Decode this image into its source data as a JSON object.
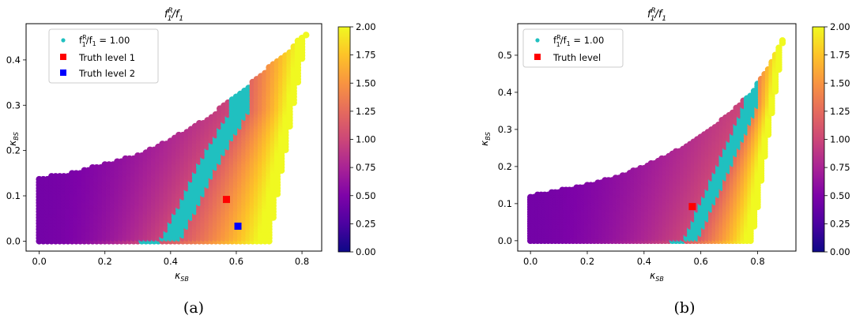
{
  "chart_data": [
    {
      "type": "scatter",
      "title": "f1R/f1",
      "xlabel": "κSB",
      "ylabel": "κBS",
      "xlim": [
        -0.04,
        0.86
      ],
      "ylim": [
        -0.022,
        0.48
      ],
      "xticks": [
        "0.0",
        "0.2",
        "0.4",
        "0.6",
        "0.8"
      ],
      "yticks": [
        "0.0",
        "0.1",
        "0.2",
        "0.3",
        "0.4"
      ],
      "ytick_values": [
        0.0,
        0.1,
        0.2,
        0.3,
        0.4
      ],
      "xtick_values": [
        0.0,
        0.2,
        0.4,
        0.6,
        0.8
      ],
      "colorbar": {
        "min": 0.0,
        "max": 2.0,
        "colormap": "plasma",
        "ticks": [
          "0.00",
          "0.25",
          "0.50",
          "0.75",
          "1.00",
          "1.25",
          "1.50",
          "1.75",
          "2.00"
        ]
      },
      "region": {
        "description": "filled colored scatter region",
        "left_edge_x": 0.0,
        "bottom_y": 0.0,
        "bottom_right_x": 0.7,
        "top_left_y": 0.14,
        "boundary_upper": [
          [
            0.0,
            0.14
          ],
          [
            0.1,
            0.15
          ],
          [
            0.2,
            0.17
          ],
          [
            0.3,
            0.19
          ],
          [
            0.4,
            0.225
          ],
          [
            0.5,
            0.265
          ],
          [
            0.6,
            0.32
          ],
          [
            0.7,
            0.385
          ],
          [
            0.76,
            0.42
          ],
          [
            0.81,
            0.46
          ]
        ],
        "boundary_right": [
          [
            0.7,
            0.0
          ],
          [
            0.72,
            0.08
          ],
          [
            0.74,
            0.16
          ],
          [
            0.77,
            0.28
          ],
          [
            0.8,
            0.4
          ],
          [
            0.815,
            0.46
          ]
        ]
      },
      "contour_ratio_1": [
        [
          0.31,
          0.0
        ],
        [
          0.37,
          0.0
        ],
        [
          0.42,
          0.07
        ],
        [
          0.48,
          0.16
        ],
        [
          0.55,
          0.25
        ],
        [
          0.585,
          0.29
        ],
        [
          0.57,
          0.29
        ],
        [
          0.52,
          0.23
        ],
        [
          0.44,
          0.13
        ],
        [
          0.36,
          0.04
        ]
      ],
      "markers": [
        {
          "name": "Truth level 1",
          "x": 0.57,
          "y": 0.092,
          "color": "#ff0000"
        },
        {
          "name": "Truth level 2",
          "x": 0.605,
          "y": 0.033,
          "color": "#0000ff"
        }
      ],
      "legend": {
        "placement": "upper-left",
        "entries": [
          "f1R/f1 = 1.00",
          "Truth level 1",
          "Truth level 2"
        ]
      },
      "contour_color": "#20c0c0",
      "caption": "(a)"
    },
    {
      "type": "scatter",
      "title": "f1R/f1",
      "xlabel": "κSB",
      "ylabel": "κBS",
      "xlim": [
        -0.045,
        0.935
      ],
      "ylim": [
        -0.028,
        0.585
      ],
      "xticks": [
        "0.0",
        "0.2",
        "0.4",
        "0.6",
        "0.8"
      ],
      "yticks": [
        "0.0",
        "0.1",
        "0.2",
        "0.3",
        "0.4",
        "0.5"
      ],
      "ytick_values": [
        0.0,
        0.1,
        0.2,
        0.3,
        0.4,
        0.5
      ],
      "xtick_values": [
        0.0,
        0.2,
        0.4,
        0.6,
        0.8
      ],
      "colorbar": {
        "min": 0.0,
        "max": 2.0,
        "colormap": "plasma",
        "ticks": [
          "0.00",
          "0.25",
          "0.50",
          "0.75",
          "1.00",
          "1.25",
          "1.50",
          "1.75",
          "2.00"
        ]
      },
      "region": {
        "description": "filled colored scatter region",
        "left_edge_x": 0.0,
        "bottom_y": 0.0,
        "bottom_right_x": 0.78,
        "top_left_y": 0.12,
        "boundary_upper": [
          [
            0.0,
            0.12
          ],
          [
            0.1,
            0.135
          ],
          [
            0.2,
            0.15
          ],
          [
            0.3,
            0.17
          ],
          [
            0.4,
            0.2
          ],
          [
            0.5,
            0.235
          ],
          [
            0.6,
            0.28
          ],
          [
            0.7,
            0.34
          ],
          [
            0.78,
            0.4
          ],
          [
            0.84,
            0.47
          ],
          [
            0.885,
            0.54
          ]
        ],
        "boundary_right": [
          [
            0.78,
            0.0
          ],
          [
            0.8,
            0.09
          ],
          [
            0.82,
            0.2
          ],
          [
            0.85,
            0.34
          ],
          [
            0.875,
            0.46
          ],
          [
            0.89,
            0.54
          ]
        ]
      },
      "contour_ratio_1": [
        [
          0.49,
          0.0
        ],
        [
          0.54,
          0.0
        ],
        [
          0.6,
          0.1
        ],
        [
          0.67,
          0.22
        ],
        [
          0.735,
          0.33
        ],
        [
          0.755,
          0.37
        ],
        [
          0.745,
          0.37
        ],
        [
          0.7,
          0.3
        ],
        [
          0.62,
          0.18
        ],
        [
          0.53,
          0.05
        ]
      ],
      "markers": [
        {
          "name": "Truth level",
          "x": 0.57,
          "y": 0.092,
          "color": "#ff0000"
        }
      ],
      "legend": {
        "placement": "upper-left",
        "entries": [
          "f1R/f1 = 1.00",
          "Truth level"
        ]
      },
      "contour_color": "#20c0c0",
      "caption": "(b)"
    }
  ]
}
